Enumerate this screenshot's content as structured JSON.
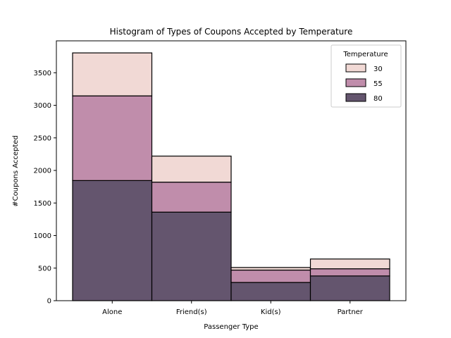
{
  "chart_data": {
    "type": "bar",
    "stacked": true,
    "title": "Histogram of Types of Coupons Accepted by Temperature",
    "xlabel": "Passenger Type",
    "ylabel": "#Coupons Accepted",
    "categories": [
      "Alone",
      "Friend(s)",
      "Kid(s)",
      "Partner"
    ],
    "ylim": [
      0,
      3990
    ],
    "yticks": [
      0,
      500,
      1000,
      1500,
      2000,
      2500,
      3000,
      3500
    ],
    "grid": false,
    "legend": {
      "title": "Temperature",
      "placement": "top-right"
    },
    "series": [
      {
        "name": "80",
        "color": "#64556e",
        "values": [
          1845,
          1360,
          280,
          380
        ]
      },
      {
        "name": "55",
        "color": "#c08dab",
        "values": [
          1300,
          460,
          190,
          110
        ]
      },
      {
        "name": "30",
        "color": "#f1d9d5",
        "values": [
          660,
          400,
          40,
          150
        ]
      }
    ],
    "legend_order": [
      "30",
      "55",
      "80"
    ]
  }
}
